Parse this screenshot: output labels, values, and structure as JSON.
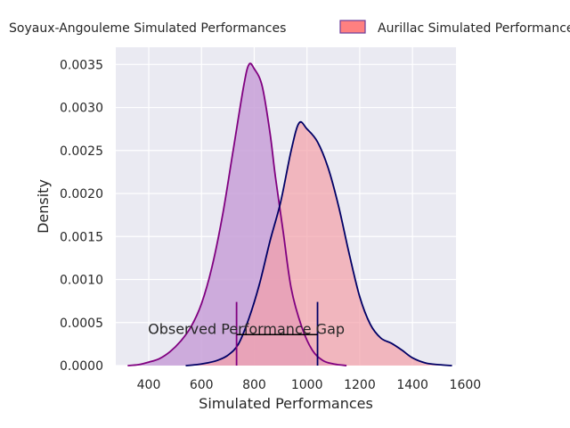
{
  "chart_data": {
    "type": "area",
    "chart_kind": "kde",
    "xlabel": "Simulated Performances",
    "ylabel": "Density",
    "xlim": [
      275,
      1565
    ],
    "ylim": [
      0,
      0.0037
    ],
    "x_ticks": [
      400,
      600,
      800,
      1000,
      1200,
      1400,
      1600
    ],
    "x_tick_labels": [
      "400",
      "600",
      "800",
      "1000",
      "1200",
      "1400",
      "1600"
    ],
    "y_ticks": [
      0,
      0.0005,
      0.001,
      0.0015,
      0.002,
      0.0025,
      0.003,
      0.0035
    ],
    "y_tick_labels": [
      "0.0000",
      "0.0005",
      "0.0010",
      "0.0015",
      "0.0020",
      "0.0025",
      "0.0030",
      "0.0035"
    ],
    "grid": true,
    "legend_position": "top, outside plot",
    "series": [
      {
        "name": "Soyaux-Angouleme Simulated Performances",
        "line_color": "#800080",
        "fill_color": "#c8a0d8",
        "points": [
          [
            320,
            0.0
          ],
          [
            360,
            1e-05
          ],
          [
            400,
            4e-05
          ],
          [
            440,
            8e-05
          ],
          [
            480,
            0.00016
          ],
          [
            520,
            0.00028
          ],
          [
            560,
            0.00045
          ],
          [
            600,
            0.00072
          ],
          [
            640,
            0.00115
          ],
          [
            680,
            0.00175
          ],
          [
            720,
            0.0025
          ],
          [
            760,
            0.00325
          ],
          [
            780,
            0.0035
          ],
          [
            800,
            0.00345
          ],
          [
            830,
            0.00325
          ],
          [
            860,
            0.0027
          ],
          [
            880,
            0.0022
          ],
          [
            910,
            0.00155
          ],
          [
            940,
            0.0009
          ],
          [
            980,
            0.00045
          ],
          [
            1020,
            0.00018
          ],
          [
            1060,
            6e-05
          ],
          [
            1100,
            2e-05
          ],
          [
            1150,
            0.0
          ]
        ]
      },
      {
        "name": "Aurillac Simulated Performances",
        "line_color": "#000066",
        "fill_color": "#f4a0a8",
        "points": [
          [
            540,
            0.0
          ],
          [
            580,
            1e-05
          ],
          [
            620,
            3e-05
          ],
          [
            660,
            6e-05
          ],
          [
            700,
            0.00012
          ],
          [
            740,
            0.00025
          ],
          [
            780,
            0.00055
          ],
          [
            820,
            0.00095
          ],
          [
            860,
            0.00145
          ],
          [
            900,
            0.0019
          ],
          [
            940,
            0.0025
          ],
          [
            970,
            0.00282
          ],
          [
            1000,
            0.00275
          ],
          [
            1040,
            0.0026
          ],
          [
            1080,
            0.0023
          ],
          [
            1120,
            0.00185
          ],
          [
            1160,
            0.0013
          ],
          [
            1200,
            0.0008
          ],
          [
            1240,
            0.00048
          ],
          [
            1280,
            0.00032
          ],
          [
            1320,
            0.00026
          ],
          [
            1360,
            0.00018
          ],
          [
            1400,
            9e-05
          ],
          [
            1450,
            3e-05
          ],
          [
            1500,
            1e-05
          ],
          [
            1550,
            0.0
          ]
        ]
      }
    ],
    "annotation": {
      "text": "Observed Performance Gap",
      "x_text": 770,
      "y_text": 0.00043,
      "gap_start": 733,
      "gap_end": 1040,
      "gap_y": 0.00036,
      "marker_top": 0.00074,
      "start_color": "#800080",
      "end_color": "#000066"
    },
    "legend": [
      "Soyaux-Angouleme Simulated Performances",
      "Aurillac Simulated Performances"
    ]
  },
  "colors": {
    "plot_bg": "#eaeaf2",
    "grid": "#ffffff",
    "legend_swatch_fill": "#ff8080",
    "legend_swatch_edge": "#6a3d9a"
  }
}
